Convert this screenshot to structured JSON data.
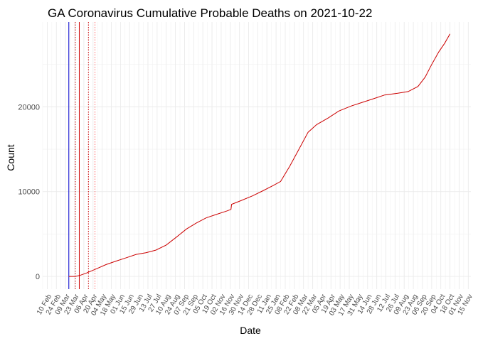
{
  "chart_data": {
    "type": "line",
    "title": "GA Coronavirus Cumulative Probable Deaths on 2021-10-22",
    "xlabel": "Date",
    "ylabel": "Count",
    "x_axis": "date",
    "xlim": [
      "2020-02-03",
      "2021-11-19"
    ],
    "ylim": [
      -1500,
      30000
    ],
    "y_ticks": [
      0,
      10000,
      20000
    ],
    "x_ticks": [
      "2020-02-10",
      "2020-02-24",
      "2020-03-09",
      "2020-03-23",
      "2020-04-06",
      "2020-04-20",
      "2020-05-04",
      "2020-05-18",
      "2020-06-01",
      "2020-06-15",
      "2020-06-29",
      "2020-07-13",
      "2020-07-27",
      "2020-08-10",
      "2020-08-24",
      "2020-09-07",
      "2020-09-21",
      "2020-10-05",
      "2020-10-19",
      "2020-11-02",
      "2020-11-16",
      "2020-11-30",
      "2020-12-14",
      "2020-12-28",
      "2021-01-11",
      "2021-01-25",
      "2021-02-08",
      "2021-02-22",
      "2021-03-08",
      "2021-03-22",
      "2021-04-05",
      "2021-04-19",
      "2021-05-03",
      "2021-05-17",
      "2021-05-31",
      "2021-06-14",
      "2021-06-28",
      "2021-07-12",
      "2021-07-26",
      "2021-08-09",
      "2021-08-23",
      "2021-09-06",
      "2021-09-20",
      "2021-10-04",
      "2021-10-18",
      "2021-11-01",
      "2021-11-15"
    ],
    "x_tick_labels": [
      "10 Feb",
      "24 Feb",
      "09 Mar",
      "23 Mar",
      "06 Apr",
      "20 Apr",
      "04 May",
      "18 May",
      "01 Jun",
      "15 Jun",
      "29 Jun",
      "13 Jul",
      "27 Jul",
      "10 Aug",
      "24 Aug",
      "07 Sep",
      "21 Sep",
      "05 Oct",
      "19 Oct",
      "02 Nov",
      "16 Nov",
      "30 Nov",
      "14 Dec",
      "28 Dec",
      "11 Jan",
      "25 Jan",
      "08 Feb",
      "22 Feb",
      "08 Mar",
      "22 Mar",
      "05 Apr",
      "19 Apr",
      "03 May",
      "17 May",
      "31 May",
      "14 Jun",
      "28 Jun",
      "12 Jul",
      "26 Jul",
      "09 Aug",
      "23 Aug",
      "06 Sep",
      "20 Sep",
      "04 Oct",
      "18 Oct",
      "01 Nov",
      "15 Nov"
    ],
    "vlines": [
      {
        "x": "2020-03-14",
        "color": "#0000cc",
        "style": "solid"
      },
      {
        "x": "2020-03-24",
        "color": "#cc0000",
        "style": "dotted"
      },
      {
        "x": "2020-03-30",
        "color": "#cc0000",
        "style": "solid"
      },
      {
        "x": "2020-04-13",
        "color": "#cc0000",
        "style": "dotted"
      },
      {
        "x": "2020-04-23",
        "color": "#ff6666",
        "style": "dotted"
      }
    ],
    "series": [
      {
        "color": "#cc0000",
        "points": [
          [
            "2020-03-14",
            0
          ],
          [
            "2020-03-24",
            0
          ],
          [
            "2020-04-01",
            150
          ],
          [
            "2020-04-10",
            400
          ],
          [
            "2020-04-25",
            900
          ],
          [
            "2020-05-10",
            1400
          ],
          [
            "2020-05-25",
            1800
          ],
          [
            "2020-06-10",
            2200
          ],
          [
            "2020-06-25",
            2600
          ],
          [
            "2020-07-10",
            2800
          ],
          [
            "2020-07-25",
            3100
          ],
          [
            "2020-08-10",
            3700
          ],
          [
            "2020-08-25",
            4600
          ],
          [
            "2020-09-10",
            5600
          ],
          [
            "2020-09-25",
            6300
          ],
          [
            "2020-10-10",
            6900
          ],
          [
            "2020-10-25",
            7300
          ],
          [
            "2020-11-10",
            7700
          ],
          [
            "2020-11-17",
            7900
          ],
          [
            "2020-11-18",
            8500
          ],
          [
            "2020-12-01",
            8900
          ],
          [
            "2020-12-20",
            9500
          ],
          [
            "2021-01-05",
            10100
          ],
          [
            "2021-01-20",
            10700
          ],
          [
            "2021-02-01",
            11200
          ],
          [
            "2021-02-15",
            13000
          ],
          [
            "2021-03-01",
            15000
          ],
          [
            "2021-03-15",
            17000
          ],
          [
            "2021-03-28",
            17900
          ],
          [
            "2021-04-15",
            18700
          ],
          [
            "2021-05-01",
            19500
          ],
          [
            "2021-05-20",
            20100
          ],
          [
            "2021-06-05",
            20500
          ],
          [
            "2021-06-25",
            21000
          ],
          [
            "2021-07-10",
            21400
          ],
          [
            "2021-07-30",
            21600
          ],
          [
            "2021-08-15",
            21800
          ],
          [
            "2021-08-30",
            22400
          ],
          [
            "2021-09-10",
            23500
          ],
          [
            "2021-09-20",
            25000
          ],
          [
            "2021-10-01",
            26500
          ],
          [
            "2021-10-10",
            27500
          ],
          [
            "2021-10-18",
            28600
          ]
        ]
      }
    ]
  }
}
